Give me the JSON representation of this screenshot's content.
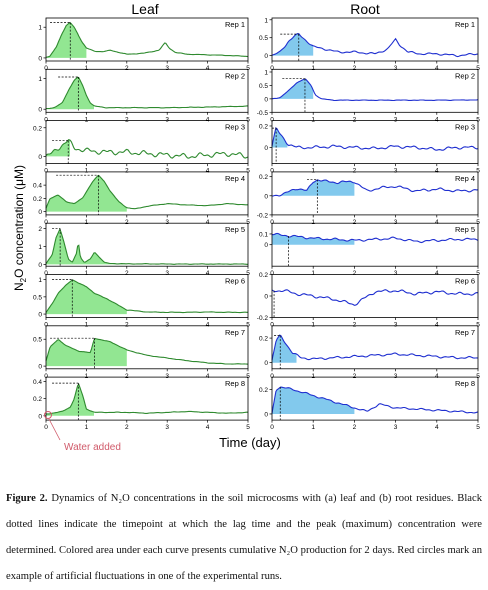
{
  "figure": {
    "col_titles": {
      "leaf": "Leaf",
      "root": "Root"
    },
    "col_colors": {
      "leaf": "#3a9a3a",
      "root": "#2a2ad0"
    },
    "ylabel_text": "N",
    "ylabel_sub": "2",
    "ylabel_rest": "O concentration (μM)",
    "xlabel": "Time (day)",
    "annotation": "Water added",
    "annotation_color": "#d05a6a"
  },
  "caption": {
    "label": "Figure 2.",
    "text": " Dynamics of N₂O concentrations in the soil microcosms with (a) leaf and (b) root residues. Black dotted lines indicate the timepoint at which the lag time and the peak (maximum) concentration were determined. Colored area under each curve presents cumulative N₂O production for 2 days. Red circles mark an example of artificial fluctuations in one of the experimental runs."
  },
  "chart_data": [
    {
      "type": "line",
      "panel": "leaf",
      "rep": "Rep 1",
      "xlim": [
        0,
        5
      ],
      "ylim": [
        -0.1,
        1.3
      ],
      "yticks": [
        0,
        1
      ],
      "xticks": [
        0,
        1,
        2,
        3,
        4,
        5
      ],
      "fill_to": 1.0,
      "lag": 0.1,
      "peak_x": 0.6,
      "peak_y": 1.15,
      "x": [
        0,
        0.1,
        0.25,
        0.4,
        0.5,
        0.6,
        0.7,
        0.8,
        0.9,
        1.0,
        1.2,
        1.4,
        1.6,
        1.8,
        2.0,
        2.4,
        2.8,
        2.95,
        3.05,
        3.2,
        3.5,
        4.0,
        4.5,
        5.0
      ],
      "y": [
        0.02,
        0.05,
        0.35,
        0.8,
        1.05,
        1.15,
        1.0,
        0.75,
        0.5,
        0.32,
        0.22,
        0.2,
        0.25,
        0.18,
        0.12,
        0.15,
        0.25,
        0.5,
        0.32,
        0.18,
        0.12,
        0.1,
        0.08,
        0.05
      ]
    },
    {
      "type": "line",
      "panel": "leaf",
      "rep": "Rep 2",
      "xlim": [
        0,
        5
      ],
      "ylim": [
        -0.1,
        1.3
      ],
      "yticks": [
        0,
        1
      ],
      "xticks": [
        0,
        1,
        2,
        3,
        4,
        5
      ],
      "fill_to": 1.2,
      "lag": 0.3,
      "peak_x": 0.8,
      "peak_y": 1.05,
      "x": [
        0,
        0.2,
        0.4,
        0.55,
        0.7,
        0.8,
        0.9,
        1.0,
        1.1,
        1.2,
        1.5,
        2.0,
        3.0,
        4.0,
        5.0
      ],
      "y": [
        0.02,
        0.05,
        0.2,
        0.6,
        0.95,
        1.05,
        0.8,
        0.45,
        0.2,
        0.1,
        0.05,
        0.05,
        0.05,
        0.07,
        0.1
      ]
    },
    {
      "type": "line",
      "panel": "leaf",
      "rep": "Rep 3",
      "xlim": [
        0,
        5
      ],
      "ylim": [
        -0.05,
        0.25
      ],
      "yticks": [
        0,
        0.2
      ],
      "xticks": [
        0,
        1,
        2,
        3,
        4,
        5
      ],
      "fill_to": 0.6,
      "lag": 0.15,
      "peak_x": 0.55,
      "peak_y": 0.11,
      "noise": 0.02,
      "x": [
        0,
        0.15,
        0.3,
        0.45,
        0.55,
        0.7,
        1.0,
        1.5,
        2.0,
        2.5,
        3.0,
        3.5,
        4.0,
        4.5,
        5.0
      ],
      "y": [
        0.0,
        0.02,
        0.06,
        0.09,
        0.11,
        0.06,
        0.04,
        0.03,
        0.03,
        0.02,
        0.01,
        0.0,
        0.01,
        0.02,
        0.0
      ]
    },
    {
      "type": "line",
      "panel": "leaf",
      "rep": "Rep 4",
      "xlim": [
        0,
        5
      ],
      "ylim": [
        -0.05,
        0.6
      ],
      "yticks": [
        0,
        0.2,
        0.4
      ],
      "xticks": [
        0,
        1,
        2,
        3,
        4,
        5
      ],
      "fill_to": 2.0,
      "lag": 0.25,
      "peak_x": 1.3,
      "peak_y": 0.55,
      "x": [
        0,
        0.1,
        0.3,
        0.5,
        0.7,
        0.9,
        1.0,
        1.15,
        1.3,
        1.45,
        1.6,
        1.8,
        2.0,
        2.2,
        2.5,
        3.0,
        3.5,
        4.0,
        4.5,
        5.0
      ],
      "y": [
        0.05,
        0.2,
        0.25,
        0.15,
        0.12,
        0.2,
        0.3,
        0.45,
        0.55,
        0.45,
        0.3,
        0.15,
        0.06,
        0.04,
        0.08,
        0.12,
        0.1,
        0.09,
        0.12,
        0.1
      ]
    },
    {
      "type": "line",
      "panel": "leaf",
      "rep": "Rep 5",
      "xlim": [
        0,
        5
      ],
      "ylim": [
        -0.1,
        2.3
      ],
      "yticks": [
        0,
        1,
        2
      ],
      "xticks": [
        0,
        1,
        2,
        3,
        4,
        5
      ],
      "fill_to": 2.0,
      "lag": 0.15,
      "peak_x": 0.35,
      "peak_y": 2.0,
      "x": [
        0,
        0.15,
        0.25,
        0.35,
        0.45,
        0.55,
        0.65,
        0.75,
        0.8,
        0.85,
        0.95,
        1.1,
        1.2,
        1.3,
        1.45,
        1.6,
        2.0,
        2.5,
        3.0,
        4.0,
        5.0
      ],
      "y": [
        0.05,
        0.5,
        1.5,
        2.0,
        1.2,
        0.3,
        0.1,
        0.6,
        1.3,
        0.4,
        0.1,
        0.3,
        0.7,
        0.45,
        0.1,
        0.05,
        0.03,
        0.03,
        0.02,
        0.02,
        0.02
      ]
    },
    {
      "type": "line",
      "panel": "leaf",
      "rep": "Rep 6",
      "xlim": [
        0,
        5
      ],
      "ylim": [
        -0.1,
        1.15
      ],
      "yticks": [
        0,
        0.5,
        1.0
      ],
      "xticks": [
        0,
        1,
        2,
        3,
        4,
        5
      ],
      "fill_to": 2.0,
      "lag": 0.15,
      "peak_x": 0.65,
      "peak_y": 1.0,
      "x": [
        0,
        0.15,
        0.3,
        0.5,
        0.65,
        0.8,
        1.0,
        1.2,
        1.5,
        1.8,
        2.0,
        2.5,
        3.0,
        3.5,
        4.0,
        4.5,
        5.0
      ],
      "y": [
        0.05,
        0.3,
        0.6,
        0.85,
        1.0,
        0.9,
        0.8,
        0.6,
        0.45,
        0.25,
        0.12,
        0.06,
        0.05,
        0.05,
        0.06,
        0.05,
        0.05
      ]
    },
    {
      "type": "line",
      "panel": "leaf",
      "rep": "Rep 7",
      "xlim": [
        0,
        5
      ],
      "ylim": [
        -0.05,
        0.75
      ],
      "yticks": [
        0,
        0.5
      ],
      "xticks": [
        0,
        1,
        2,
        3,
        4,
        5
      ],
      "fill_to": 2.0,
      "lag": 0.1,
      "peak_x": 1.2,
      "peak_y": 0.52,
      "x": [
        0,
        0.1,
        0.3,
        0.5,
        0.8,
        1.1,
        1.2,
        1.3,
        1.6,
        2.0,
        2.5,
        3.0,
        3.5,
        4.0,
        4.5,
        5.0
      ],
      "y": [
        0.1,
        0.35,
        0.5,
        0.38,
        0.28,
        0.25,
        0.52,
        0.5,
        0.45,
        0.3,
        0.2,
        0.15,
        0.1,
        0.06,
        0.04,
        0.04
      ]
    },
    {
      "type": "line",
      "panel": "leaf",
      "rep": "Rep 8",
      "xlim": [
        0,
        5
      ],
      "ylim": [
        -0.05,
        0.45
      ],
      "yticks": [
        0,
        0.2,
        0.4
      ],
      "xticks": [
        0,
        1,
        2,
        3,
        4,
        5
      ],
      "fill_to": 1.2,
      "lag": 0.15,
      "peak_x": 0.8,
      "peak_y": 0.38,
      "x": [
        0,
        0.15,
        0.4,
        0.6,
        0.7,
        0.8,
        0.9,
        1.0,
        1.2,
        1.5,
        2.0,
        2.5,
        3.0,
        3.5,
        4.0,
        4.5,
        5.0
      ],
      "y": [
        0.02,
        0.03,
        0.05,
        0.1,
        0.2,
        0.38,
        0.25,
        0.08,
        0.04,
        0.04,
        0.04,
        0.03,
        0.04,
        0.05,
        0.04,
        0.03,
        0.04
      ]
    },
    {
      "type": "line",
      "panel": "root",
      "rep": "Rep 1",
      "xlim": [
        0,
        5
      ],
      "ylim": [
        -0.15,
        1.05
      ],
      "yticks": [
        0,
        0.5,
        1.0
      ],
      "xticks": [
        0,
        1,
        2,
        3,
        4,
        5
      ],
      "fill_to": 1.0,
      "lag": 0.2,
      "peak_x": 0.65,
      "peak_y": 0.6,
      "noise": 0.03,
      "x": [
        0,
        0.2,
        0.4,
        0.55,
        0.65,
        0.8,
        1.0,
        1.3,
        1.6,
        2.0,
        2.5,
        2.8,
        3.0,
        3.1,
        3.3,
        3.6,
        4.0,
        4.5,
        5.0
      ],
      "y": [
        0.0,
        0.1,
        0.4,
        0.55,
        0.6,
        0.45,
        0.25,
        0.18,
        0.1,
        0.1,
        0.05,
        0.18,
        0.45,
        0.3,
        0.1,
        0.05,
        0.05,
        0.0,
        0.05
      ]
    },
    {
      "type": "line",
      "panel": "root",
      "rep": "Rep 2",
      "xlim": [
        0,
        5
      ],
      "ylim": [
        -0.5,
        1.1
      ],
      "yticks": [
        -0.5,
        0.0,
        0.5,
        1.0
      ],
      "xticks": [
        0,
        1,
        2,
        3,
        4,
        5
      ],
      "fill_to": 1.0,
      "lag": 0.25,
      "peak_x": 0.8,
      "peak_y": 0.75,
      "x": [
        0,
        0.2,
        0.4,
        0.6,
        0.8,
        0.95,
        1.05,
        1.2,
        1.5,
        2.0,
        3.0,
        4.0,
        5.0
      ],
      "y": [
        0.0,
        0.05,
        0.3,
        0.6,
        0.75,
        0.5,
        0.15,
        0.0,
        -0.05,
        -0.05,
        -0.05,
        -0.05,
        -0.04
      ]
    },
    {
      "type": "line",
      "panel": "root",
      "rep": "Rep 3",
      "xlim": [
        0,
        5
      ],
      "ylim": [
        -0.15,
        0.25
      ],
      "yticks": [
        0,
        0.2
      ],
      "xticks": [
        0,
        1,
        2,
        3,
        4,
        5
      ],
      "fill_to": 0.4,
      "lag": 0.0,
      "peak_x": 0.1,
      "peak_y": 0.18,
      "noise": 0.015,
      "x": [
        0,
        0.1,
        0.2,
        0.4,
        0.6,
        1.0,
        1.5,
        2.0,
        2.5,
        3.0,
        3.5,
        4.0,
        4.5,
        5.0
      ],
      "y": [
        0.02,
        0.18,
        0.12,
        0.03,
        0.0,
        0.0,
        0.01,
        0.0,
        -0.01,
        0.01,
        0.0,
        -0.02,
        0.0,
        0.0
      ]
    },
    {
      "type": "line",
      "panel": "root",
      "rep": "Rep 4",
      "xlim": [
        0,
        5
      ],
      "ylim": [
        -0.2,
        0.25
      ],
      "yticks": [
        -0.2,
        0.0,
        0.2
      ],
      "xticks": [
        0,
        1,
        2,
        3,
        4,
        5
      ],
      "fill_to": 2.0,
      "lag": 0.85,
      "peak_x": 1.1,
      "peak_y": 0.17,
      "noise": 0.015,
      "x": [
        0,
        0.3,
        0.6,
        0.85,
        1.0,
        1.1,
        1.3,
        1.6,
        2.0,
        2.3,
        2.6,
        3.0,
        3.5,
        4.0,
        4.5,
        5.0
      ],
      "y": [
        0.0,
        0.02,
        0.08,
        0.05,
        0.15,
        0.17,
        0.15,
        0.14,
        0.15,
        0.05,
        0.08,
        0.1,
        0.05,
        0.07,
        0.05,
        0.06
      ]
    },
    {
      "type": "line",
      "panel": "root",
      "rep": "Rep 5",
      "xlim": [
        0,
        5
      ],
      "ylim": [
        -0.2,
        0.2
      ],
      "yticks": [
        0.0,
        0.1
      ],
      "xticks": [
        0,
        1,
        2,
        3,
        4,
        5
      ],
      "fill_to": 2.0,
      "lag": 0.4,
      "peak_x": 0.4,
      "peak_y": 0.08,
      "noise": 0.012,
      "x": [
        0,
        0.2,
        0.5,
        1.0,
        1.5,
        2.0,
        2.5,
        3.0,
        3.5,
        4.0,
        4.5,
        5.0
      ],
      "y": [
        0.1,
        0.09,
        0.08,
        0.06,
        0.05,
        0.04,
        0.05,
        0.06,
        0.03,
        0.04,
        0.05,
        0.05
      ]
    },
    {
      "type": "line",
      "panel": "root",
      "rep": "Rep 6",
      "xlim": [
        0,
        5
      ],
      "ylim": [
        -0.2,
        0.2
      ],
      "yticks": [
        -0.2,
        0.0,
        0.2
      ],
      "xticks": [
        0,
        1,
        2,
        3,
        4,
        5
      ],
      "fill_to": 0.0,
      "lag": 0.05,
      "peak_x": 0.05,
      "peak_y": 0.05,
      "noise": 0.015,
      "x": [
        0,
        0.3,
        0.6,
        1.0,
        1.5,
        2.0,
        2.5,
        3.0,
        3.5,
        4.0,
        4.5,
        5.0
      ],
      "y": [
        0.05,
        0.05,
        0.02,
        0.0,
        -0.03,
        -0.08,
        0.04,
        0.05,
        0.02,
        0.04,
        0.02,
        0.02
      ]
    },
    {
      "type": "line",
      "panel": "root",
      "rep": "Rep 7",
      "xlim": [
        0,
        5
      ],
      "ylim": [
        -0.05,
        0.3
      ],
      "yticks": [
        0.0,
        0.2
      ],
      "xticks": [
        0,
        1,
        2,
        3,
        4,
        5
      ],
      "fill_to": 0.6,
      "lag": 0.05,
      "peak_x": 0.2,
      "peak_y": 0.22,
      "noise": 0.01,
      "x": [
        0,
        0.1,
        0.2,
        0.35,
        0.5,
        0.7,
        1.0,
        1.5,
        2.0,
        2.5,
        3.0,
        3.5,
        4.0,
        4.5,
        5.0
      ],
      "y": [
        0.02,
        0.18,
        0.22,
        0.15,
        0.08,
        0.04,
        0.03,
        0.04,
        0.05,
        0.06,
        0.07,
        0.06,
        0.05,
        0.04,
        0.04
      ]
    },
    {
      "type": "line",
      "panel": "root",
      "rep": "Rep 8",
      "xlim": [
        0,
        5
      ],
      "ylim": [
        -0.05,
        0.3
      ],
      "yticks": [
        0.0,
        0.2
      ],
      "xticks": [
        0,
        1,
        2,
        3,
        4,
        5
      ],
      "fill_to": 2.0,
      "lag": 0.2,
      "peak_x": 0.2,
      "peak_y": 0.22,
      "noise": 0.008,
      "x": [
        0,
        0.1,
        0.2,
        0.5,
        1.0,
        1.5,
        2.0,
        2.3,
        2.6,
        3.0,
        3.5,
        4.0,
        4.5,
        5.0
      ],
      "y": [
        0.0,
        0.2,
        0.22,
        0.2,
        0.15,
        0.1,
        0.05,
        0.02,
        0.08,
        0.05,
        0.04,
        0.03,
        0.02,
        0.01
      ]
    }
  ]
}
